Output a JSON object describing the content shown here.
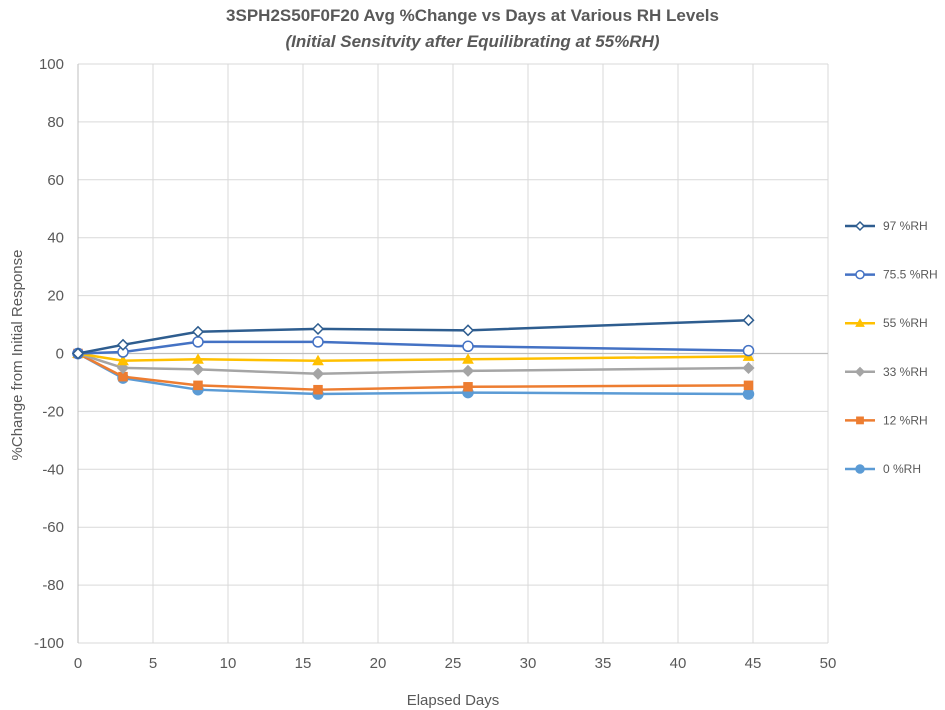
{
  "chart_data": {
    "type": "line",
    "title": "3SPH2S50F0F20 Avg %Change vs Days at Various RH Levels",
    "subtitle": "(Initial Sensitvity after Equilibrating at 55%RH)",
    "xlabel": "Elapsed Days",
    "ylabel": "%Change from Initial Response",
    "xlim": [
      0,
      50
    ],
    "ylim": [
      -100,
      100
    ],
    "xticks": [
      0,
      5,
      10,
      15,
      20,
      25,
      30,
      35,
      40,
      45,
      50
    ],
    "yticks": [
      100,
      80,
      60,
      40,
      20,
      0,
      -20,
      -40,
      -60,
      -80,
      -100
    ],
    "grid": true,
    "legend_position": "right",
    "x": [
      0,
      3,
      8,
      16,
      26,
      44.7
    ],
    "series": [
      {
        "name": "97 %RH",
        "color": "#2e5d8f",
        "marker": "diamond-open",
        "values": [
          0,
          3,
          7.5,
          8.5,
          8,
          11.5
        ]
      },
      {
        "name": "75.5 %RH",
        "color": "#4472c4",
        "marker": "circle-open",
        "values": [
          0,
          0.5,
          4,
          4,
          2.5,
          1
        ]
      },
      {
        "name": "55 %RH",
        "color": "#ffc000",
        "marker": "triangle",
        "values": [
          0,
          -2.5,
          -2,
          -2.5,
          -2,
          -1
        ]
      },
      {
        "name": "33 %RH",
        "color": "#a5a5a5",
        "marker": "diamond",
        "values": [
          0,
          -5,
          -5.5,
          -7,
          -6,
          -5
        ]
      },
      {
        "name": "12 %RH",
        "color": "#ed7d31",
        "marker": "square",
        "values": [
          0,
          -8,
          -11,
          -12.5,
          -11.5,
          -11
        ]
      },
      {
        "name": "0 %RH",
        "color": "#5b9bd5",
        "marker": "circle",
        "values": [
          0,
          -8.5,
          -12.5,
          -14,
          -13.5,
          -14
        ]
      }
    ]
  }
}
